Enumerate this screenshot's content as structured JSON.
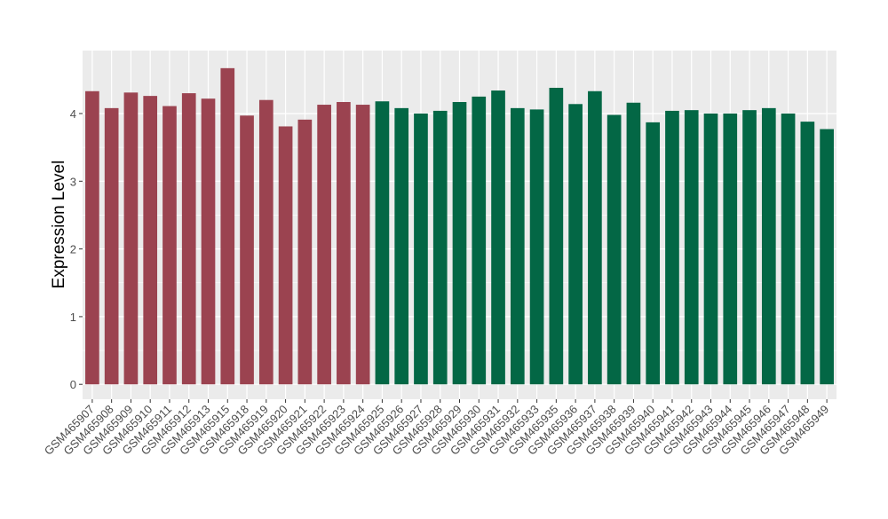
{
  "chart_data": {
    "type": "bar",
    "ylabel": "Expression Level",
    "xlabel": "",
    "ylim": [
      -0.22,
      4.93
    ],
    "yticks": [
      0,
      1,
      2,
      3,
      4
    ],
    "grid": true,
    "legend": "none",
    "colors": {
      "group_a": "#9b4350",
      "group_b": "#036745",
      "panel": "#ebebeb",
      "gridline": "#ffffff",
      "text": "#4d4d4d"
    },
    "categories": [
      "GSM465907",
      "GSM465908",
      "GSM465909",
      "GSM465910",
      "GSM465911",
      "GSM465912",
      "GSM465913",
      "GSM465915",
      "GSM465918",
      "GSM465919",
      "GSM465920",
      "GSM465921",
      "GSM465922",
      "GSM465923",
      "GSM465924",
      "GSM465925",
      "GSM465926",
      "GSM465927",
      "GSM465928",
      "GSM465929",
      "GSM465930",
      "GSM465931",
      "GSM465932",
      "GSM465933",
      "GSM465935",
      "GSM465936",
      "GSM465937",
      "GSM465938",
      "GSM465939",
      "GSM465940",
      "GSM465941",
      "GSM465942",
      "GSM465943",
      "GSM465944",
      "GSM465945",
      "GSM465946",
      "GSM465947",
      "GSM465948",
      "GSM465949"
    ],
    "values": [
      4.33,
      4.08,
      4.31,
      4.26,
      4.11,
      4.3,
      4.22,
      4.67,
      3.97,
      4.2,
      3.81,
      3.91,
      4.13,
      4.17,
      4.13,
      4.18,
      4.08,
      4.0,
      4.04,
      4.17,
      4.25,
      4.34,
      4.08,
      4.06,
      4.38,
      4.14,
      4.33,
      3.98,
      4.16,
      3.87,
      4.04,
      4.05,
      4.0,
      4.0,
      4.05,
      4.08,
      4.0,
      3.88,
      3.77
    ],
    "group": [
      "a",
      "a",
      "a",
      "a",
      "a",
      "a",
      "a",
      "a",
      "a",
      "a",
      "a",
      "a",
      "a",
      "a",
      "a",
      "b",
      "b",
      "b",
      "b",
      "b",
      "b",
      "b",
      "b",
      "b",
      "b",
      "b",
      "b",
      "b",
      "b",
      "b",
      "b",
      "b",
      "b",
      "b",
      "b",
      "b",
      "b",
      "b",
      "b"
    ]
  }
}
